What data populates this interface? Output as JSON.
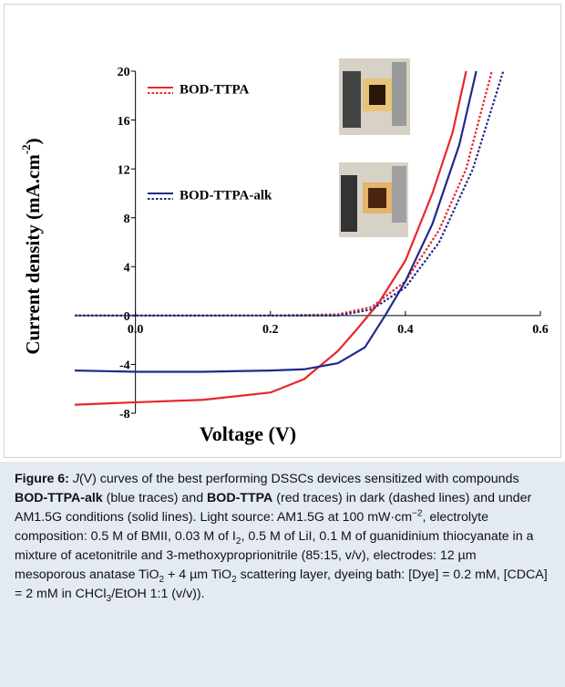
{
  "chart_data": {
    "type": "line",
    "xlabel": "Voltage (V)",
    "ylabel": {
      "text": "Current density (mA.cm",
      "sup": "-2",
      "end": ")"
    },
    "xlim": [
      -0.09,
      0.6
    ],
    "ylim": [
      -8,
      20
    ],
    "xticks": [
      {
        "value": 0,
        "label": "0.0"
      },
      {
        "value": 0.2,
        "label": "0.2"
      },
      {
        "value": 0.4,
        "label": "0.4"
      },
      {
        "value": 0.6,
        "label": "0.6"
      }
    ],
    "yticks": [
      -8,
      -4,
      0,
      4,
      8,
      12,
      16,
      20
    ],
    "groups": [
      {
        "name": "BOD-TTPA",
        "color": "#e8262c",
        "series": [
          {
            "style": "solid",
            "x": [
              -0.09,
              0,
              0.1,
              0.2,
              0.25,
              0.3,
              0.33,
              0.36,
              0.4,
              0.44,
              0.47,
              0.49
            ],
            "values": [
              -7.3,
              -7.1,
              -6.9,
              -6.3,
              -5.2,
              -2.9,
              -1,
              1,
              4.5,
              10,
              15,
              20
            ]
          },
          {
            "style": "dotted",
            "x": [
              -0.09,
              0,
              0.1,
              0.2,
              0.3,
              0.35,
              0.4,
              0.45,
              0.49,
              0.528
            ],
            "values": [
              0,
              0,
              0,
              0,
              0.1,
              0.7,
              2.8,
              7,
              12,
              20
            ]
          }
        ]
      },
      {
        "name": "BOD-TTPA-alk",
        "color": "#1f2a8a",
        "series": [
          {
            "style": "solid",
            "x": [
              -0.09,
              0,
              0.1,
              0.2,
              0.25,
              0.3,
              0.34,
              0.37,
              0.4,
              0.44,
              0.48,
              0.505
            ],
            "values": [
              -4.5,
              -4.6,
              -4.6,
              -4.5,
              -4.4,
              -3.9,
              -2.6,
              0,
              2.8,
              7.5,
              14,
              20
            ]
          },
          {
            "style": "dotted",
            "x": [
              -0.09,
              0,
              0.1,
              0.2,
              0.3,
              0.35,
              0.4,
              0.45,
              0.5,
              0.545
            ],
            "values": [
              0,
              0,
              0,
              0,
              0,
              0.5,
              2.3,
              6,
              12,
              20
            ]
          }
        ]
      }
    ]
  },
  "caption": [
    {
      "t": "Figure 6: ",
      "b": true
    },
    {
      "t": "J",
      "i": true
    },
    {
      "t": "(V) curves of the best performing DSSCs devices sensitized with compounds "
    },
    {
      "t": "BOD-TTPA-alk",
      "b": true
    },
    {
      "t": " (blue traces) and "
    },
    {
      "t": "BOD-TTPA",
      "b": true
    },
    {
      "t": " (red traces) in dark (dashed lines) and under AM1.5G conditions (solid lines). Light source: AM1.5G at 100 mW·cm"
    },
    {
      "t": "−2",
      "sup": true
    },
    {
      "t": ", electrolyte composition: 0.5 M of BMII, 0.03 M of I"
    },
    {
      "t": "2",
      "sub": true
    },
    {
      "t": ", 0.5 M of LiI, 0.1 M of guanidinium thiocyanate in a mixture of acetonitrile and 3-methoxyproprionitrile (85:15, v/v), electrodes: 12 µm mesoporous anatase TiO"
    },
    {
      "t": "2",
      "sub": true
    },
    {
      "t": " + 4 µm TiO"
    },
    {
      "t": "2",
      "sub": true
    },
    {
      "t": " scattering layer, dyeing bath: [Dye] = 0.2 mM, [CDCA] = 2 mM in CHCl"
    },
    {
      "t": "3",
      "sub": true
    },
    {
      "t": "/EtOH 1:1 (v/v))."
    }
  ]
}
